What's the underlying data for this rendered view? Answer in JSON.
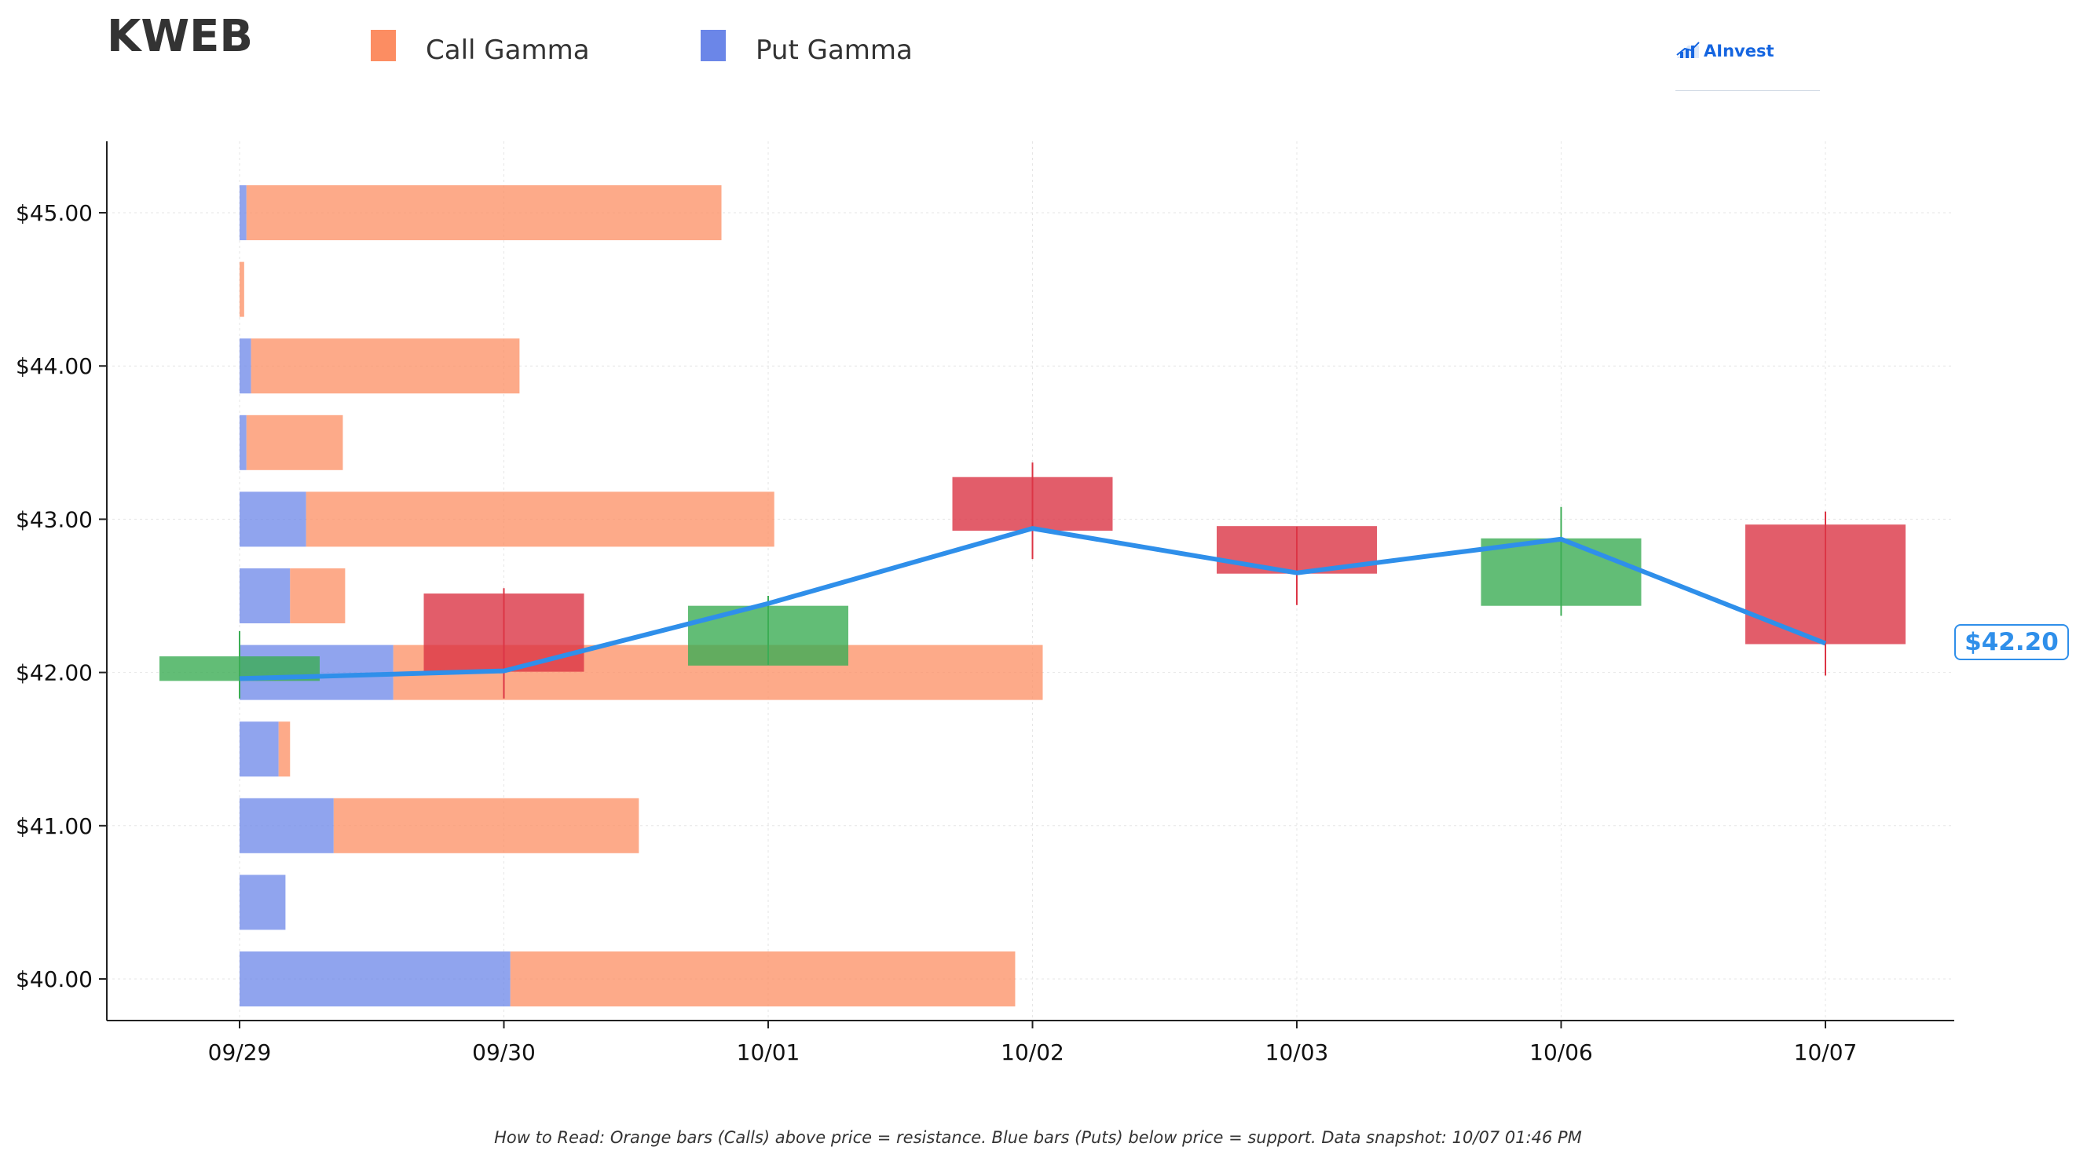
{
  "header": {
    "ticker": "KWEB",
    "brand": "AInvest"
  },
  "legend": {
    "call_label": "Call Gamma",
    "put_label": "Put Gamma"
  },
  "footnote": "How to Read: Orange bars (Calls) above price = resistance. Blue bars (Puts) below price = support. Data snapshot: 10/07 01:46 PM",
  "colors": {
    "call": "#fc8d62",
    "put": "#6b86e8",
    "up_candle": "#3cad55",
    "down_candle": "#dc3545",
    "price_line": "#2f8fea",
    "axis": "#222222",
    "grid": "#e6e6e6"
  },
  "chart_data": {
    "type": "candlestick_with_gamma_bars",
    "title": "KWEB",
    "xlabel": "",
    "ylabel": "",
    "x_categories": [
      "09/29",
      "09/30",
      "10/01",
      "10/02",
      "10/03",
      "10/06",
      "10/07"
    ],
    "y_ticks": [
      "$40.00",
      "$41.00",
      "$42.00",
      "$43.00",
      "$44.00",
      "$45.00"
    ],
    "y_tick_values": [
      40,
      41,
      42,
      43,
      44,
      45
    ],
    "ylim": [
      39.6,
      45.45
    ],
    "grid": true,
    "legend_position": "top",
    "gamma_bars": {
      "strikes": [
        40,
        40.5,
        41,
        41.5,
        42,
        42.5,
        43,
        43.5,
        44,
        44.5,
        45
      ],
      "put_gamma": [
        1.18,
        0.2,
        0.41,
        0.17,
        0.67,
        0.22,
        0.29,
        0.03,
        0.05,
        0,
        0.03
      ],
      "call_gamma": [
        2.2,
        0,
        1.33,
        0.05,
        2.83,
        0.24,
        2.04,
        0.42,
        1.17,
        0.02,
        2.07
      ],
      "gamma_axis_max": 7.0
    },
    "candles": [
      {
        "date": "09/29",
        "open": 41.95,
        "high": 42.27,
        "low": 41.83,
        "close": 42.1
      },
      {
        "date": "09/30",
        "open": 42.51,
        "high": 42.55,
        "low": 41.83,
        "close": 42.01
      },
      {
        "date": "10/01",
        "open": 42.05,
        "high": 42.5,
        "low": 42.05,
        "close": 42.43
      },
      {
        "date": "10/02",
        "open": 43.27,
        "high": 43.37,
        "low": 42.74,
        "close": 42.93
      },
      {
        "date": "10/03",
        "open": 42.95,
        "high": 42.95,
        "low": 42.44,
        "close": 42.65
      },
      {
        "date": "10/06",
        "open": 42.44,
        "high": 43.08,
        "low": 42.37,
        "close": 42.87
      },
      {
        "date": "10/07",
        "open": 42.96,
        "high": 43.05,
        "low": 41.98,
        "close": 42.19
      }
    ],
    "price_line": {
      "x": [
        "09/29",
        "09/30",
        "10/01",
        "10/02",
        "10/03",
        "10/06",
        "10/07"
      ],
      "y": [
        41.96,
        42.01,
        42.45,
        42.94,
        42.65,
        42.87,
        42.19
      ]
    },
    "last_price_label": "$42.20"
  }
}
